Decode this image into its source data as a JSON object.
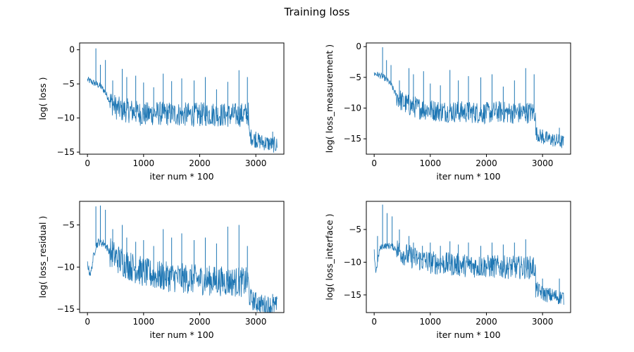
{
  "figure_title": "Training loss",
  "chart_data": [
    {
      "type": "line",
      "title": "",
      "xlabel": "iter num * 100",
      "ylabel": "log( loss )",
      "xlim": [
        -140,
        3500
      ],
      "ylim": [
        -15.3,
        1.0
      ],
      "xticks": [
        0,
        1000,
        2000,
        3000
      ],
      "yticks": [
        0,
        -5,
        -10,
        -15
      ],
      "grid": false,
      "series": [
        {
          "color": "#1f77b4",
          "x": [
            0,
            50,
            100,
            150,
            200,
            250,
            300,
            400,
            500,
            600,
            800,
            1000,
            1200,
            1500,
            1800,
            2000,
            2200,
            2500,
            2800,
            2870,
            2880,
            2950,
            3000,
            3100,
            3200,
            3300,
            3380
          ],
          "y": [
            -4.4,
            -4.6,
            -4.8,
            -5.0,
            -5.2,
            -5.5,
            -6.0,
            -7.5,
            -8.4,
            -8.8,
            -9.0,
            -9.5,
            -9.3,
            -9.4,
            -9.5,
            -9.5,
            -9.4,
            -9.6,
            -9.5,
            -9.4,
            -12.5,
            -13.0,
            -13.2,
            -13.5,
            -13.7,
            -13.9,
            -14.0
          ],
          "spikes": [
            {
              "x": 150,
              "y": 0.2
            },
            {
              "x": 230,
              "y": -2.2
            },
            {
              "x": 320,
              "y": -1.5
            },
            {
              "x": 450,
              "y": -4.5
            },
            {
              "x": 620,
              "y": -2.8
            },
            {
              "x": 700,
              "y": -4.0
            },
            {
              "x": 860,
              "y": -3.8
            },
            {
              "x": 1000,
              "y": -4.8
            },
            {
              "x": 1180,
              "y": -5.5
            },
            {
              "x": 1350,
              "y": -3.5
            },
            {
              "x": 1500,
              "y": -4.6
            },
            {
              "x": 1680,
              "y": -4.2
            },
            {
              "x": 1900,
              "y": -4.5
            },
            {
              "x": 2100,
              "y": -4.0
            },
            {
              "x": 2300,
              "y": -5.8
            },
            {
              "x": 2500,
              "y": -4.7
            },
            {
              "x": 2700,
              "y": -3.0
            },
            {
              "x": 2850,
              "y": -4.0
            },
            {
              "x": 3000,
              "y": -12.0
            },
            {
              "x": 3300,
              "y": -12.0
            }
          ]
        }
      ]
    },
    {
      "type": "line",
      "title": "",
      "xlabel": "iter num * 100",
      "ylabel": "log( loss_measurement )",
      "xlim": [
        -140,
        3500
      ],
      "ylim": [
        -17.5,
        0.6
      ],
      "xticks": [
        0,
        1000,
        2000,
        3000
      ],
      "yticks": [
        0,
        -5,
        -10,
        -15
      ],
      "grid": false,
      "series": [
        {
          "color": "#1f77b4",
          "x": [
            0,
            50,
            100,
            150,
            200,
            250,
            300,
            400,
            500,
            600,
            800,
            1000,
            1200,
            1500,
            1800,
            2000,
            2200,
            2500,
            2800,
            2870,
            2880,
            2950,
            3000,
            3100,
            3200,
            3300,
            3380
          ],
          "y": [
            -4.4,
            -4.5,
            -4.7,
            -4.9,
            -5.2,
            -5.6,
            -6.2,
            -8.0,
            -9.0,
            -9.5,
            -10.0,
            -10.3,
            -10.5,
            -10.6,
            -10.7,
            -10.8,
            -10.6,
            -10.8,
            -10.7,
            -10.6,
            -14.0,
            -14.5,
            -14.8,
            -15.0,
            -15.2,
            -15.4,
            -15.6
          ],
          "spikes": [
            {
              "x": 150,
              "y": -0.1
            },
            {
              "x": 220,
              "y": -2.2
            },
            {
              "x": 300,
              "y": -3.0
            },
            {
              "x": 450,
              "y": -5.5
            },
            {
              "x": 620,
              "y": -3.5
            },
            {
              "x": 700,
              "y": -4.5
            },
            {
              "x": 880,
              "y": -4.0
            },
            {
              "x": 1000,
              "y": -6.0
            },
            {
              "x": 1180,
              "y": -6.3
            },
            {
              "x": 1350,
              "y": -3.8
            },
            {
              "x": 1500,
              "y": -5.5
            },
            {
              "x": 1680,
              "y": -4.8
            },
            {
              "x": 1900,
              "y": -5.0
            },
            {
              "x": 2100,
              "y": -4.5
            },
            {
              "x": 2300,
              "y": -6.5
            },
            {
              "x": 2500,
              "y": -5.5
            },
            {
              "x": 2700,
              "y": -3.5
            },
            {
              "x": 2850,
              "y": -4.5
            },
            {
              "x": 3000,
              "y": -13.5
            },
            {
              "x": 3300,
              "y": -13.2
            }
          ]
        }
      ]
    },
    {
      "type": "line",
      "title": "",
      "xlabel": "iter num * 100",
      "ylabel": "log( loss_residual )",
      "xlim": [
        -140,
        3500
      ],
      "ylim": [
        -15.4,
        -2.2
      ],
      "xticks": [
        0,
        1000,
        2000,
        3000
      ],
      "yticks": [
        -5,
        -10,
        -15
      ],
      "grid": false,
      "series": [
        {
          "color": "#1f77b4",
          "x": [
            0,
            30,
            60,
            100,
            150,
            200,
            300,
            400,
            500,
            600,
            800,
            1000,
            1200,
            1500,
            1800,
            2000,
            2200,
            2500,
            2800,
            2870,
            2880,
            2950,
            3000,
            3100,
            3200,
            3300,
            3380
          ],
          "y": [
            -9.5,
            -10.5,
            -10.8,
            -9.0,
            -7.5,
            -7.0,
            -7.2,
            -8.2,
            -8.8,
            -9.3,
            -10.0,
            -10.6,
            -11.0,
            -11.2,
            -11.4,
            -11.5,
            -11.6,
            -11.7,
            -11.8,
            -11.8,
            -13.5,
            -14.0,
            -14.2,
            -14.4,
            -14.5,
            -14.6,
            -14.6
          ],
          "spikes": [
            {
              "x": 150,
              "y": -2.8
            },
            {
              "x": 230,
              "y": -2.7
            },
            {
              "x": 320,
              "y": -3.2
            },
            {
              "x": 450,
              "y": -5.5
            },
            {
              "x": 620,
              "y": -5.0
            },
            {
              "x": 700,
              "y": -6.5
            },
            {
              "x": 860,
              "y": -7.0
            },
            {
              "x": 1000,
              "y": -6.8
            },
            {
              "x": 1180,
              "y": -7.5
            },
            {
              "x": 1350,
              "y": -5.5
            },
            {
              "x": 1500,
              "y": -6.5
            },
            {
              "x": 1680,
              "y": -6.0
            },
            {
              "x": 1900,
              "y": -6.8
            },
            {
              "x": 2100,
              "y": -6.5
            },
            {
              "x": 2300,
              "y": -7.2
            },
            {
              "x": 2500,
              "y": -5.2
            },
            {
              "x": 2700,
              "y": -5.0
            },
            {
              "x": 2850,
              "y": -7.5
            },
            {
              "x": 3000,
              "y": -13.0
            },
            {
              "x": 3300,
              "y": -13.2
            }
          ]
        }
      ]
    },
    {
      "type": "line",
      "title": "",
      "xlabel": "iter num * 100",
      "ylabel": "log( loss_interface )",
      "xlim": [
        -140,
        3500
      ],
      "ylim": [
        -17.7,
        -0.7
      ],
      "xticks": [
        0,
        1000,
        2000,
        3000
      ],
      "yticks": [
        -5,
        -10,
        -15
      ],
      "grid": false,
      "series": [
        {
          "color": "#1f77b4",
          "x": [
            0,
            30,
            60,
            100,
            150,
            200,
            300,
            400,
            500,
            600,
            800,
            1000,
            1200,
            1500,
            1800,
            2000,
            2200,
            2500,
            2800,
            2870,
            2880,
            2950,
            3000,
            3100,
            3200,
            3300,
            3380
          ],
          "y": [
            -8.5,
            -11.5,
            -10.0,
            -8.0,
            -7.5,
            -7.5,
            -7.5,
            -8.0,
            -8.6,
            -9.0,
            -9.6,
            -10.0,
            -10.2,
            -10.4,
            -10.6,
            -10.6,
            -10.7,
            -10.8,
            -10.8,
            -10.7,
            -14.0,
            -14.5,
            -14.8,
            -15.0,
            -15.2,
            -15.3,
            -15.4
          ],
          "spikes": [
            {
              "x": 60,
              "y": -6.0
            },
            {
              "x": 150,
              "y": -1.2
            },
            {
              "x": 230,
              "y": -2.5
            },
            {
              "x": 320,
              "y": -3.0
            },
            {
              "x": 450,
              "y": -5.0
            },
            {
              "x": 620,
              "y": -6.0
            },
            {
              "x": 700,
              "y": -7.0
            },
            {
              "x": 860,
              "y": -7.5
            },
            {
              "x": 1000,
              "y": -7.0
            },
            {
              "x": 1180,
              "y": -7.5
            },
            {
              "x": 1350,
              "y": -6.8
            },
            {
              "x": 1500,
              "y": -7.3
            },
            {
              "x": 1680,
              "y": -7.0
            },
            {
              "x": 1900,
              "y": -7.5
            },
            {
              "x": 2100,
              "y": -7.0
            },
            {
              "x": 2300,
              "y": -7.3
            },
            {
              "x": 2500,
              "y": -7.0
            },
            {
              "x": 2700,
              "y": -6.5
            },
            {
              "x": 3000,
              "y": -12.5
            },
            {
              "x": 3300,
              "y": -12.5
            }
          ]
        }
      ]
    }
  ]
}
